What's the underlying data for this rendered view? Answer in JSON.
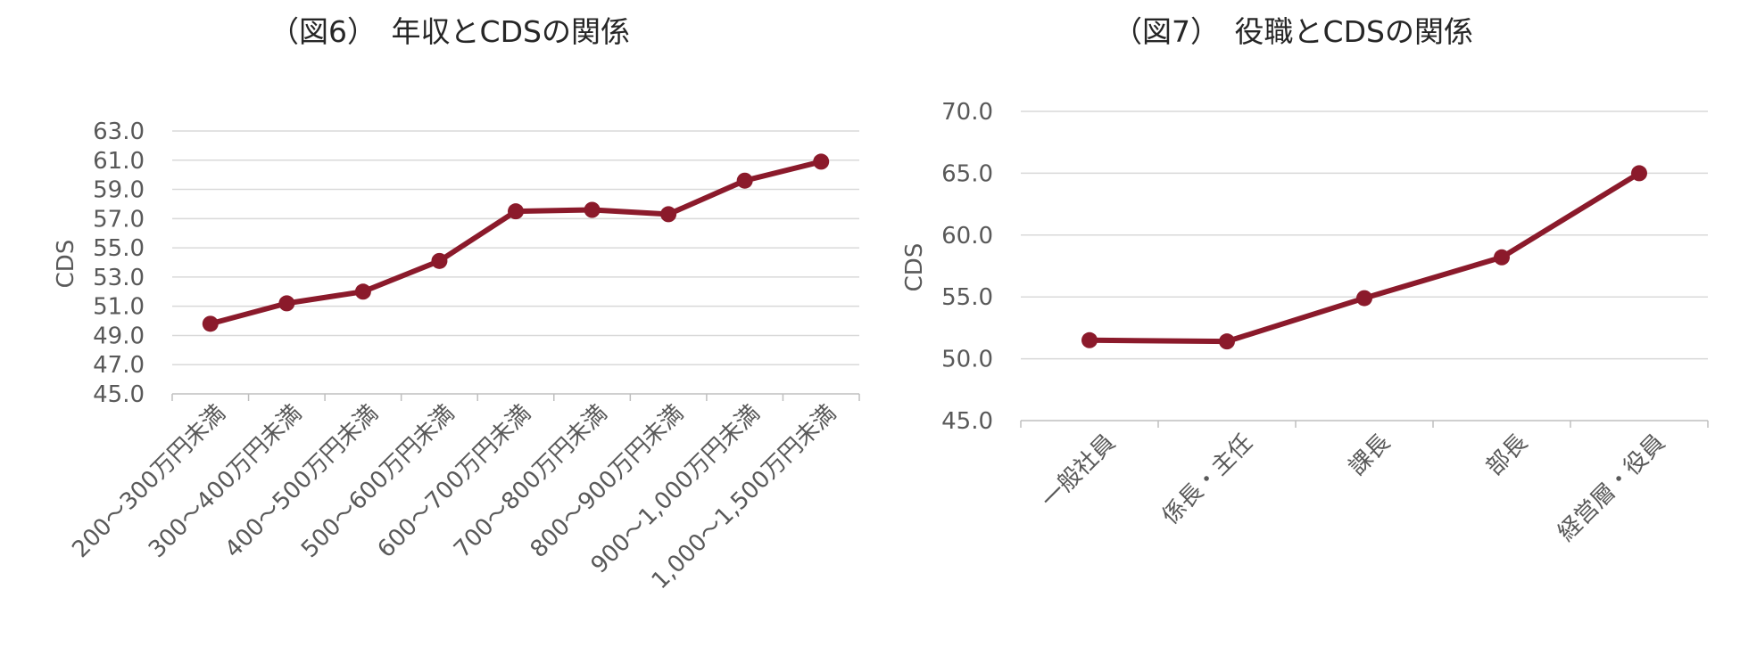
{
  "chart_data": [
    {
      "type": "line",
      "title": "（図6）　年収とCDSの関係",
      "xlabel": "",
      "ylabel": "CDS",
      "ylim": [
        45.0,
        63.0
      ],
      "yticks": [
        "45.0",
        "47.0",
        "49.0",
        "51.0",
        "53.0",
        "55.0",
        "57.0",
        "59.0",
        "61.0",
        "63.0"
      ],
      "grid": true,
      "categories": [
        "200～300万円未満",
        "300～400万円未満",
        "400～500万円未満",
        "500～600万円未満",
        "600～700万円未満",
        "700～800万円未満",
        "800～900万円未満",
        "900～1,000万円未満",
        "1,000～1,500万円未満"
      ],
      "series": [
        {
          "values": [
            49.8,
            51.2,
            52.0,
            54.1,
            57.5,
            57.6,
            57.3,
            59.6,
            60.9
          ],
          "color": "#8B1A2B"
        }
      ]
    },
    {
      "type": "line",
      "title": "（図7）　役職とCDSの関係",
      "xlabel": "",
      "ylabel": "CDS",
      "ylim": [
        45.0,
        70.0
      ],
      "yticks": [
        "45.0",
        "50.0",
        "55.0",
        "60.0",
        "65.0",
        "70.0"
      ],
      "grid": true,
      "categories": [
        "一般社員",
        "係長・主任",
        "課長",
        "部長",
        "経営層・役員"
      ],
      "series": [
        {
          "values": [
            51.5,
            51.4,
            54.9,
            58.2,
            65.0
          ],
          "color": "#8B1A2B"
        }
      ]
    }
  ]
}
